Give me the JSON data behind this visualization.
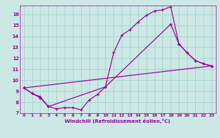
{
  "xlabel": "Windchill (Refroidissement éolien,°C)",
  "bg_color": "#cce8e4",
  "line_color": "#990099",
  "grid_color": "#aad4d0",
  "xlim": [
    -0.5,
    23.5
  ],
  "ylim": [
    7.0,
    16.8
  ],
  "yticks": [
    7,
    8,
    9,
    10,
    11,
    12,
    13,
    14,
    15,
    16
  ],
  "xticks": [
    0,
    1,
    2,
    3,
    4,
    5,
    6,
    7,
    8,
    9,
    10,
    11,
    12,
    13,
    14,
    15,
    16,
    17,
    18,
    19,
    20,
    21,
    22,
    23
  ],
  "series": [
    {
      "x": [
        0,
        1,
        2,
        3,
        10,
        11,
        12,
        13,
        14,
        15,
        16,
        17,
        18,
        19,
        20,
        21,
        22,
        23
      ],
      "y": [
        9.3,
        8.8,
        8.5,
        7.6,
        9.4,
        12.5,
        14.1,
        14.6,
        15.3,
        15.9,
        16.3,
        16.4,
        16.7,
        13.3,
        12.5,
        11.8,
        11.5,
        11.3
      ]
    },
    {
      "x": [
        0,
        1,
        2,
        3,
        4,
        5,
        6,
        7,
        8,
        9,
        10,
        18,
        19,
        20,
        21,
        22,
        23
      ],
      "y": [
        9.3,
        8.8,
        8.4,
        7.6,
        7.4,
        7.5,
        7.5,
        7.3,
        8.2,
        8.7,
        9.4,
        15.1,
        13.3,
        12.5,
        11.8,
        11.5,
        11.3
      ]
    },
    {
      "x": [
        0,
        23
      ],
      "y": [
        9.3,
        11.3
      ]
    }
  ]
}
